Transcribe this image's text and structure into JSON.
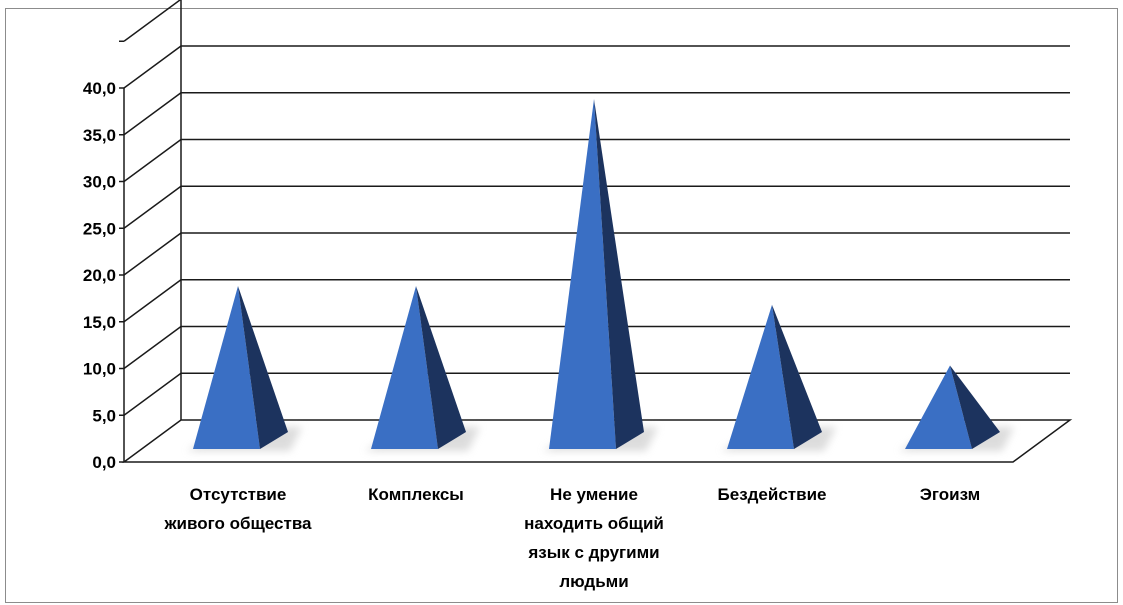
{
  "chart_data": {
    "type": "bar",
    "style": "3d-pyramid",
    "categories": [
      "Отсутствие живого общества",
      "Комплексы",
      "Не умение находить общий язык с другими людьми",
      "Бездействие",
      "Эгоизм"
    ],
    "values": [
      18.5,
      18.5,
      38.5,
      16.5,
      10.0
    ],
    "y_ticks": [
      "0,0",
      "5,0",
      "10,0",
      "15,0",
      "20,0",
      "25,0",
      "30,0",
      "35,0",
      "40,0"
    ],
    "ylim": [
      0,
      45
    ],
    "grid": true,
    "legend": "none",
    "title": "",
    "xlabel": "",
    "ylabel": ""
  },
  "colors": {
    "front_face": "#3a6fc4",
    "side_face": "#1c335e",
    "gridline": "#1a1a1a",
    "floor_shadow": "#d9d9d9",
    "frame": "#8c8c8c"
  }
}
